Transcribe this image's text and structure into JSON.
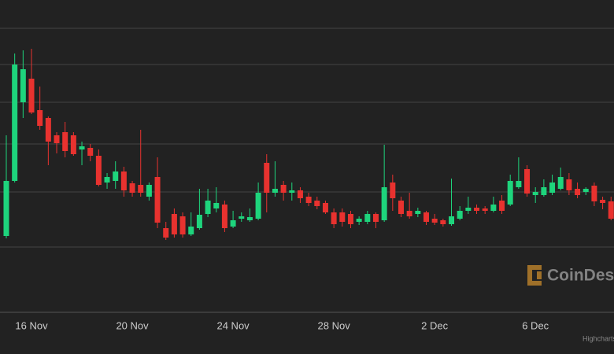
{
  "chart_data": {
    "type": "candlestick",
    "watermark": "CoinDesk",
    "credit": "Highcharts.com",
    "categories": [
      null,
      null,
      null,
      "16 Nov",
      null,
      null,
      null,
      null,
      null,
      null,
      null,
      null,
      null,
      null,
      null,
      "20 Nov",
      null,
      null,
      null,
      null,
      null,
      null,
      null,
      null,
      null,
      null,
      null,
      "24 Nov",
      null,
      null,
      null,
      null,
      null,
      null,
      null,
      null,
      null,
      null,
      null,
      "28 Nov",
      null,
      null,
      null,
      null,
      null,
      null,
      null,
      null,
      null,
      null,
      null,
      "2 Dec",
      null,
      null,
      null,
      null,
      null,
      null,
      null,
      null,
      null,
      null,
      null,
      "6 Dec",
      null,
      null,
      null,
      null,
      null,
      null,
      null,
      null,
      null
    ],
    "open": [
      100,
      170,
      270,
      300,
      260,
      250,
      228,
      232,
      228,
      210,
      212,
      202,
      168,
      170,
      182,
      167,
      165,
      150,
      175,
      110,
      128,
      125,
      102,
      110,
      128,
      135,
      140,
      112,
      122,
      120,
      122,
      193,
      155,
      165,
      155,
      158,
      150,
      145,
      142,
      130,
      130,
      128,
      118,
      118,
      128,
      120,
      168,
      145,
      132,
      128,
      130,
      122,
      120,
      115,
      122,
      132,
      136,
      135,
      132,
      145,
      140,
      162,
      185,
      152,
      152,
      155,
      160,
      172,
      160,
      156,
      164,
      146,
      144
    ],
    "high": [
      228,
      332,
      336,
      338,
      290,
      252,
      232,
      245,
      232,
      220,
      217,
      210,
      180,
      195,
      188,
      170,
      235,
      168,
      200,
      118,
      135,
      130,
      130,
      160,
      160,
      162,
      145,
      132,
      130,
      135,
      168,
      204,
      195,
      170,
      168,
      162,
      155,
      150,
      145,
      135,
      135,
      132,
      125,
      132,
      130,
      216,
      178,
      150,
      155,
      136,
      132,
      128,
      122,
      173,
      138,
      150,
      140,
      138,
      150,
      152,
      178,
      200,
      190,
      162,
      172,
      178,
      187,
      180,
      168,
      162,
      168,
      150,
      150
    ],
    "low": [
      97,
      168,
      250,
      255,
      235,
      190,
      205,
      200,
      202,
      190,
      195,
      163,
      160,
      160,
      150,
      150,
      150,
      145,
      110,
      95,
      98,
      98,
      100,
      108,
      124,
      130,
      105,
      110,
      118,
      118,
      120,
      130,
      150,
      145,
      145,
      142,
      138,
      134,
      128,
      110,
      112,
      110,
      114,
      115,
      110,
      118,
      132,
      124,
      122,
      124,
      114,
      114,
      112,
      113,
      120,
      128,
      128,
      128,
      130,
      128,
      138,
      160,
      150,
      142,
      150,
      152,
      158,
      152,
      148,
      152,
      138,
      134,
      120
    ],
    "close": [
      170,
      318,
      312,
      257,
      240,
      220,
      218,
      208,
      204,
      214,
      202,
      165,
      175,
      182,
      158,
      155,
      155,
      165,
      117,
      98,
      102,
      102,
      112,
      127,
      145,
      142,
      110,
      120,
      125,
      124,
      155,
      155,
      160,
      155,
      158,
      148,
      142,
      138,
      130,
      115,
      118,
      115,
      122,
      128,
      118,
      162,
      148,
      128,
      125,
      132,
      118,
      117,
      115,
      125,
      132,
      136,
      132,
      132,
      140,
      132,
      170,
      170,
      154,
      156,
      162,
      168,
      175,
      158,
      152,
      160,
      144,
      142,
      122
    ],
    "up_color": "#1ed47c",
    "down_color": "#e8322f",
    "ylim": [
      0,
      400
    ],
    "yticks": [
      86,
      156,
      217,
      270,
      318,
      364
    ],
    "grid": true
  }
}
